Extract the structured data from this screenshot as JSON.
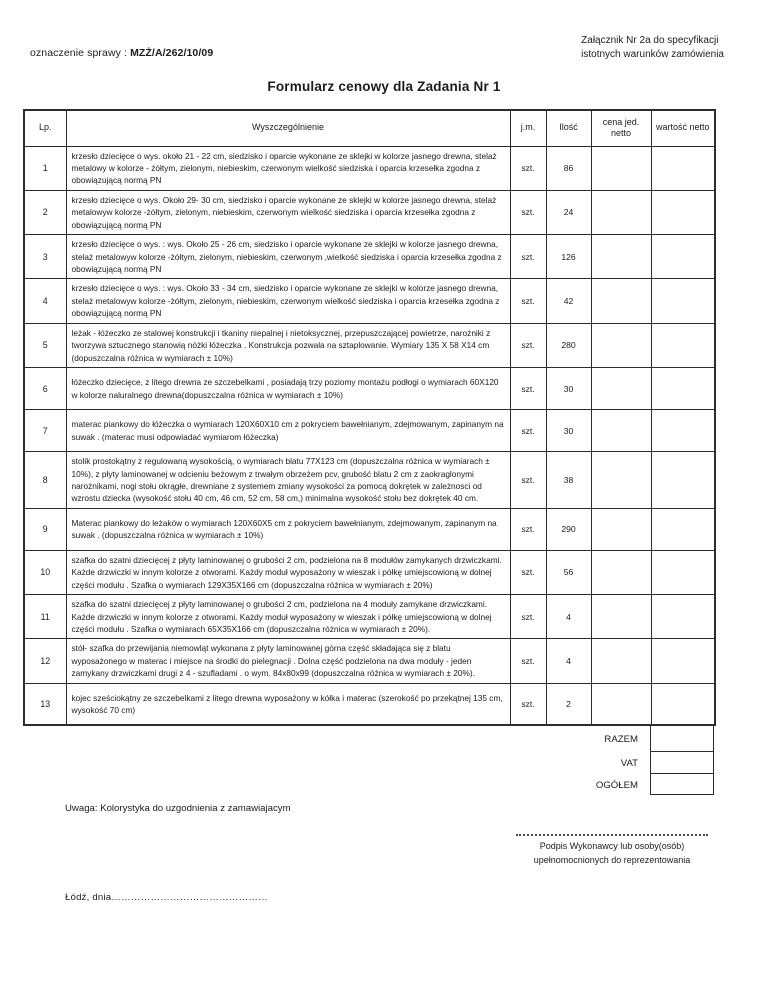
{
  "header": {
    "case_label": "oznaczenie sprawy :",
    "case_number": "MZŻ/A/262/10/09",
    "attachment_line1": "Załącznik Nr 2a  do specyfikacji",
    "attachment_line2": "istotnych warunków zamówienia"
  },
  "title": "Formularz cenowy dla Zadania Nr 1",
  "table": {
    "columns": {
      "lp": "Lp.",
      "desc": "Wyszczególnienie",
      "unit": "j.m.",
      "qty": "Ilość",
      "price": "cena jed. netto",
      "value": "wartość netto"
    },
    "rows": [
      {
        "lp": "1",
        "desc": "krzesło dziecięce o  wys. około 21 - 22 cm, siedzisko i oparcie wykonane ze sklejki w kolorze jasnego drewna, stelaż metalowy w kolorze - żółtym, zielonym, niebieskim, czerwonym wielkość siedziska i oparcia krzesełka zgodna z obowiązującą normą PN",
        "unit": "szt.",
        "qty": "86",
        "price": "",
        "value": ""
      },
      {
        "lp": "2",
        "desc": "krzesło dziecięce o wys.  Około 29- 30 cm, siedzisko i oparcie wykonane ze sklejki w kolorze jasnego drewna, stelaż metalowyw kolorze -żółtym, zielonym, niebieskim, czerwonym wielkość siedziska i oparcia krzesełka  zgodna z obowiązującą normą PN",
        "unit": "szt.",
        "qty": "24",
        "price": "",
        "value": ""
      },
      {
        "lp": "3",
        "desc": "krzesło dziecięce o wys. : wys. Około 25 - 26 cm, siedzisko i oparcie wykonane ze sklejki w kolorze jasnego drewna, stelaż metalowyw kolorze -żółtym, zielonym, niebieskim, czerwonym ,wielkość siedziska i oparcia krzesełka zgodna z obowiązującą normą PN",
        "unit": "szt.",
        "qty": "126",
        "price": "",
        "value": ""
      },
      {
        "lp": "4",
        "desc": "krzesło dziecięce o wys. : wys. Około 33 - 34 cm, siedzisko i oparcie wykonane ze sklejki w kolorze jasnego drewna, stelaż metalowyw kolorze -żółtym, zielonym, niebieskim, czerwonym wielkość siedziska i oparcia krzesełka zgodna z obowiązującą normą PN",
        "unit": "szt.",
        "qty": "42",
        "price": "",
        "value": ""
      },
      {
        "lp": "5",
        "desc": "leżak - łóżeczko ze stalowej konstrukcji i tkaniny niepalnej i nietoksycznej, przepuszczającej powietrze, narożniki z tworzywa sztucznego stanowią nóżki łóżeczka . Konstrukcja pozwala na sztaplowanie. Wymiary 135 X 58 X14 cm (dopuszczalna różnica w wymiarach ± 10%)",
        "unit": "szt.",
        "qty": "280",
        "price": "",
        "value": ""
      },
      {
        "lp": "6",
        "desc": "łóżeczko dziecięce, z litego drewna ze szczebelkami , posiadają trzy poziomy montażu podłogi o wymiarach 60X120 w kolorze naluralnego drewna(dopuszczalna różnica w wymiarach ± 10%)",
        "unit": "szt.",
        "qty": "30",
        "price": "",
        "value": ""
      },
      {
        "lp": "7",
        "desc": "materac piankowy do łóżeczka o wymiarach 120X60X10  cm z pokryciem bawełnianym, zdejmowanym, zapinanym na suwak . (materac musi odpowiadać wymiarom łóżeczka)",
        "unit": "szt.",
        "qty": "30",
        "price": "",
        "value": ""
      },
      {
        "lp": "8",
        "desc": "stolik prostokątny z regulowaną wysokością, o wymiarach blatu 77X123 cm (dopuszczalna różnica w wymiarach ± 10%),  z płyty laminowanej w odcieniu beżowym z trwałym obrzeżem pcv, grubość blatu 2 cm z zaokraglonymi narożnikami, nogi stołu okrągłe, drewniane  z systemem zmiany wysokości za pomocą dokrętek w zależnosci od wzrostu dziecka (wysokość stołu 40 cm, 46 cm, 52 cm, 58 cm,) minimalna wysokość stołu bez dokrętek 40 cm.",
        "unit": "szt.",
        "qty": "38",
        "price": "",
        "value": ""
      },
      {
        "lp": "9",
        "desc": "Materac piankowy do leżaków o wymiarach 120X60X5 cm z pokryciem bawełnianym, zdejmowanym, zapinanym na suwak . (dopuszczalna różnica w wymiarach ± 10%)",
        "unit": "szt.",
        "qty": "290",
        "price": "",
        "value": ""
      },
      {
        "lp": "10",
        "desc": "szafka do szatni dziecięcej z płyty laminowanej o grubości 2 cm, podzielona na 8 modułów zamykanych drzwiczkami. Każde drzwiczki w innym kolorze  z otworami. Każdy moduł wyposażony w wieszak i półkę umiejscowioną w dolnej części modułu . Szafka o wymiarach 129X35X166 cm (dopuszczalna różnica w wymiarach ± 20%)",
        "unit": "szt.",
        "qty": "56",
        "price": "",
        "value": ""
      },
      {
        "lp": "11",
        "desc": "szafka do szatni dziecięcej z płyty laminowanej o grubości 2 cm, podzielona na 4 moduły zamykane drzwiczkami. Każde drzwiczki w innym kolorze  z otworami. Każdy moduł wyposażony w wieszak i półkę umiejscowioną w dolnej części modułu . Szafka o wymiarach 65X35X166 cm (dopuszczalna różnica w wymiarach ± 20%).",
        "unit": "szt.",
        "qty": "4",
        "price": "",
        "value": ""
      },
      {
        "lp": "12",
        "desc": "stół- szafka do przewijania niemowląt wykonana z płyty laminowanej górna część składająca się z blatu wyposażonego w materac i miejsce na środki do pielegnacji . Dolna część podzielona na dwa moduły - jeden zamykany drzwiczkami drugi  z 4 - szufladami .  o wym. 84x80x99 (dopuszczalna różnica w wymiarach ± 20%).",
        "unit": "szt.",
        "qty": "4",
        "price": "",
        "value": ""
      },
      {
        "lp": "13",
        "desc": "kojec sześciokątny ze szczebelkami z litego drewna  wyposażony w kółka i  materac (szerokość po przekątnej 135 cm, wysokość 70 cm)",
        "unit": "szt.",
        "qty": "2",
        "price": "",
        "value": ""
      }
    ]
  },
  "summary": {
    "rows": [
      {
        "label": "RAZEM",
        "value": ""
      },
      {
        "label": "VAT",
        "value": ""
      },
      {
        "label": "OGÓŁEM",
        "value": ""
      }
    ]
  },
  "notes": {
    "uwaga": "Uwaga: Kolorystyka do uzgodnienia z zamawiajacym",
    "signature_line1": "Podpis Wykonawcy lub osoby(osób)",
    "signature_line2": "upełnomocnionych do reprezentowania",
    "place_date": "Łódź, dnia…………………………………………"
  }
}
